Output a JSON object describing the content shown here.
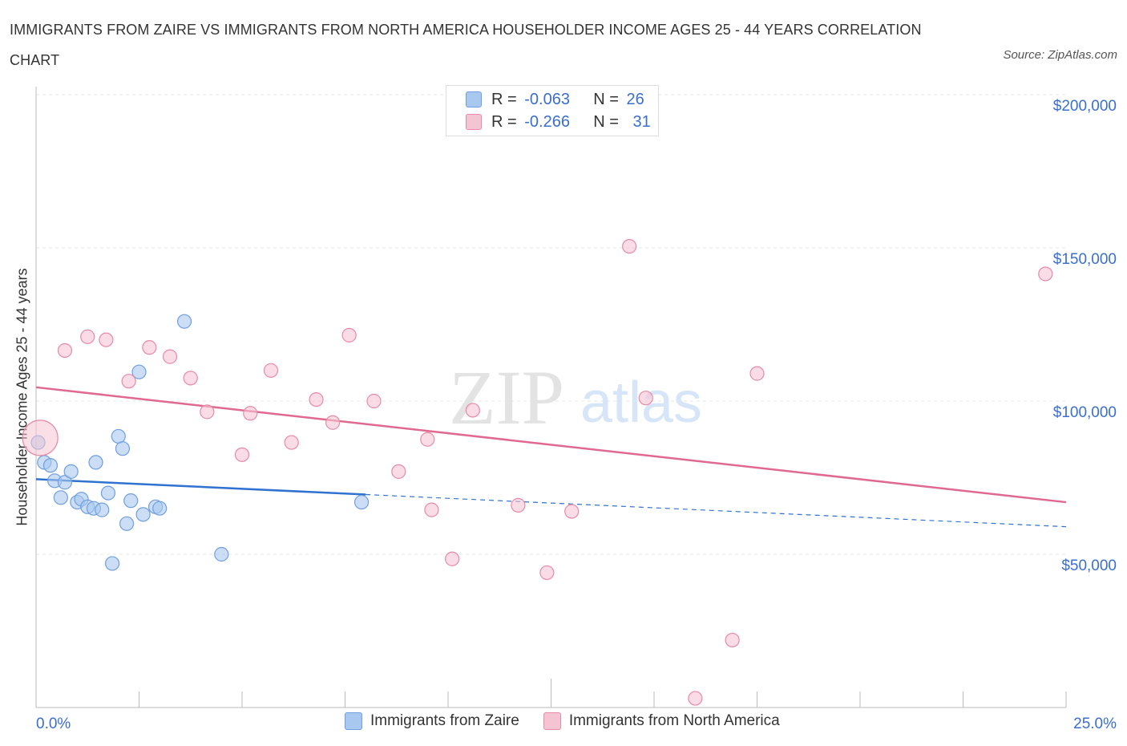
{
  "title": "IMMIGRANTS FROM ZAIRE VS IMMIGRANTS FROM NORTH AMERICA HOUSEHOLDER INCOME AGES 25 - 44 YEARS CORRELATION CHART",
  "source": "Source: ZipAtlas.com",
  "watermark": {
    "zip": "ZIP",
    "atlas": "atlas"
  },
  "legend_top": [
    {
      "r_label": "R = ",
      "r_value": "-0.063",
      "n_label": "N = ",
      "n_value": "26",
      "color": "#a9c8f0",
      "border": "#6f9fe0"
    },
    {
      "r_label": "R = ",
      "r_value": "-0.266",
      "n_label": "N = ",
      "n_value": "31",
      "color": "#f5c4d3",
      "border": "#e88aa8"
    }
  ],
  "chart_data": {
    "type": "scatter",
    "title": "IMMIGRANTS FROM ZAIRE VS IMMIGRANTS FROM NORTH AMERICA HOUSEHOLDER INCOME AGES 25 - 44 YEARS CORRELATION CHART",
    "xlabel": "",
    "ylabel": "Householder Income Ages 25 - 44 years",
    "xlim": [
      0,
      25
    ],
    "ylim": [
      0,
      200000
    ],
    "x_tick_labels": [
      "0.0%",
      "25.0%"
    ],
    "y_ticks": [
      50000,
      100000,
      150000,
      200000
    ],
    "y_tick_labels": [
      "$50,000",
      "$100,000",
      "$150,000",
      "$200,000"
    ],
    "grid": true,
    "legend_position": "bottom",
    "series": [
      {
        "name": "Immigrants from Zaire",
        "color": "#a9c8f0",
        "edge": "#6f9fe0",
        "trend_color": "#2f72d0",
        "trend": {
          "x0": 0.0,
          "y0": 74500,
          "x1": 8.0,
          "y1": 69500,
          "dash_to_x": 25.0,
          "dash_to_y": 59000
        },
        "points": [
          [
            0.05,
            86500
          ],
          [
            0.2,
            80000
          ],
          [
            0.35,
            79000
          ],
          [
            0.45,
            74000
          ],
          [
            0.6,
            68500
          ],
          [
            0.7,
            73500
          ],
          [
            0.85,
            77000
          ],
          [
            1.0,
            67000
          ],
          [
            1.1,
            68000
          ],
          [
            1.25,
            65500
          ],
          [
            1.4,
            65000
          ],
          [
            1.45,
            80000
          ],
          [
            1.6,
            64500
          ],
          [
            1.75,
            70000
          ],
          [
            1.85,
            47000
          ],
          [
            2.0,
            88500
          ],
          [
            2.1,
            84500
          ],
          [
            2.2,
            60000
          ],
          [
            2.3,
            67500
          ],
          [
            2.5,
            109500
          ],
          [
            2.6,
            63000
          ],
          [
            2.9,
            65500
          ],
          [
            3.0,
            65000
          ],
          [
            3.6,
            126000
          ],
          [
            4.5,
            50000
          ],
          [
            7.9,
            67000
          ]
        ]
      },
      {
        "name": "Immigrants from North America",
        "color": "#f5c4d3",
        "edge": "#e88aa8",
        "trend_color": "#e06990",
        "trend": {
          "x0": 0.0,
          "y0": 104500,
          "x1": 25.0,
          "y1": 67000
        },
        "points": [
          [
            0.1,
            88000
          ],
          [
            0.7,
            116500
          ],
          [
            1.25,
            121000
          ],
          [
            1.7,
            120000
          ],
          [
            2.25,
            106500
          ],
          [
            2.75,
            117500
          ],
          [
            3.25,
            114500
          ],
          [
            3.75,
            107500
          ],
          [
            4.15,
            96500
          ],
          [
            5.0,
            82500
          ],
          [
            5.2,
            96000
          ],
          [
            5.7,
            110000
          ],
          [
            6.2,
            86500
          ],
          [
            6.8,
            100500
          ],
          [
            7.2,
            93000
          ],
          [
            7.6,
            121500
          ],
          [
            8.2,
            100000
          ],
          [
            8.8,
            77000
          ],
          [
            9.5,
            87500
          ],
          [
            9.6,
            64500
          ],
          [
            10.1,
            48500
          ],
          [
            10.6,
            97000
          ],
          [
            11.7,
            66000
          ],
          [
            12.4,
            44000
          ],
          [
            13.0,
            64000
          ],
          [
            14.4,
            150500
          ],
          [
            14.8,
            101000
          ],
          [
            16.0,
            3000
          ],
          [
            16.9,
            22000
          ],
          [
            17.5,
            109000
          ],
          [
            24.5,
            141500
          ]
        ],
        "large_point_index": 0
      }
    ]
  },
  "bottom_legend": [
    {
      "label": "Immigrants from Zaire",
      "color": "#a9c8f0",
      "border": "#6f9fe0"
    },
    {
      "label": "Immigrants from North America",
      "color": "#f5c4d3",
      "border": "#e88aa8"
    }
  ]
}
